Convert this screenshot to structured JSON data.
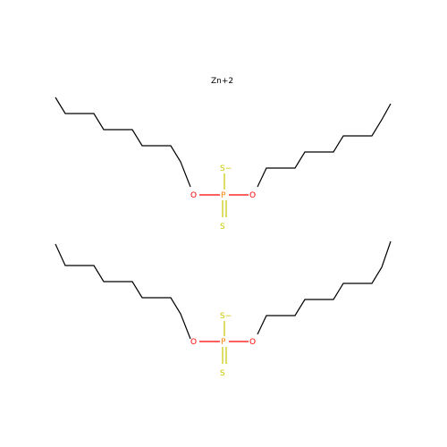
{
  "ion": {
    "label": "Zn+2"
  },
  "atoms": {
    "oxygen": "O",
    "phosphorus": "P",
    "sulfur": "S",
    "thiolate": "S−"
  },
  "colors": {
    "bond": "#000000",
    "oxygen": "#ff0000",
    "phosphorus": "#ff8000",
    "sulfur": "#c8c800",
    "ion": "#000000"
  }
}
